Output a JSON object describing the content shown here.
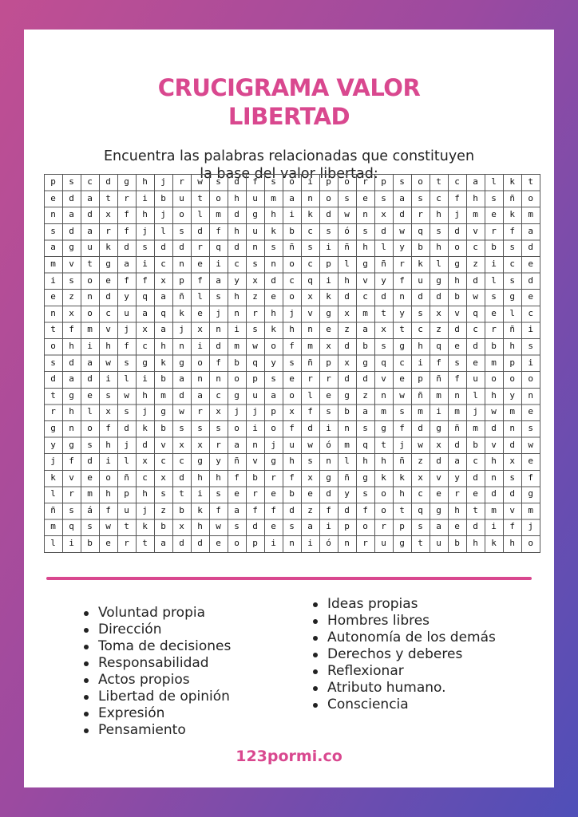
{
  "title_line1": "CRUCIGRAMA VALOR",
  "title_line2": "LIBERTAD",
  "subtitle_line1": "Encuentra las palabras relacionadas que constituyen",
  "subtitle_line2": "la base del valor libertad:",
  "grid_rows": [
    "p s c d g h j r w s d f s o i p o r p s o t c a l k t",
    "e d a t r i b u t o h u m a n o s e s a s c f h s ñ o",
    "n a d x f h j o l m d g h i k d w n x d r h j m e k m",
    "s d a r f j l s d f h u k b c s ó s d w q s d v r f a",
    "a g u k d s d d r q d n s ñ s i ñ h l y b h o c b s d",
    "m v t g a i c n e i c s n o c p l g ñ r k l g z i c e",
    "i s o e f f x p f a y x d c q i h v y f u g h d l s d",
    "e z n d y q a ñ l s h z e o x k d c d n d d b w s g e",
    "n x o c u a q k e j n r h j v g x m t y s x v q e l c",
    "t f m v j x a j x n i s k h n e z a x t c z d c r ñ i",
    "o h i h f c h n i d m w o f m x d b s g h q e d b h s",
    "s d a w s g k g o f b q y s ñ p x g q c i f s e m p i",
    "d a d i l i b a n n o p s e r r d d v e p ñ f u o o o",
    "t g e s w h m d a c g u a o l e g z n w ñ m n l h y n",
    "r h l x s j g w r x j j p x f s b a m s m i m j w m e",
    "g n o f d k b s s s o i o f d i n s g f d g ñ m d n s",
    "y g s h j d v x x r a n j u w ó m q t j w x d b v d w",
    "j f d i l x c c g y ñ v g h s n l h h ñ z d a c h x e",
    "k v e o ñ c x d h h f b r f x g ñ g k k x v y d n s f",
    "l r m h p h s t i s e r e b e d y s o h c e r e d d g",
    "ñ s á f u j z b k f a f f d z f d f o t q g h t m v m",
    "m q s w t k b x h w s d e s a i p o r p s a e d i f j",
    "l i b e r t a d d e o p i n i ó n r u g t u b h k h o"
  ],
  "words_left": [
    "Voluntad propia",
    "Dirección",
    "Toma de decisiones",
    "Responsabilidad",
    "Actos propios",
    "Libertad de opinión",
    "Expresión",
    "Pensamiento"
  ],
  "words_right": [
    "Ideas propias",
    "Hombres libres",
    "Autonomía de los demás",
    "Derechos y deberes",
    "Reflexionar",
    "Atributo humano.",
    "Consciencia"
  ],
  "footer": "123pormi.co",
  "colors": {
    "accent": "#d9488f",
    "background_start": "#c14f92",
    "background_end": "#4f4fb8"
  }
}
